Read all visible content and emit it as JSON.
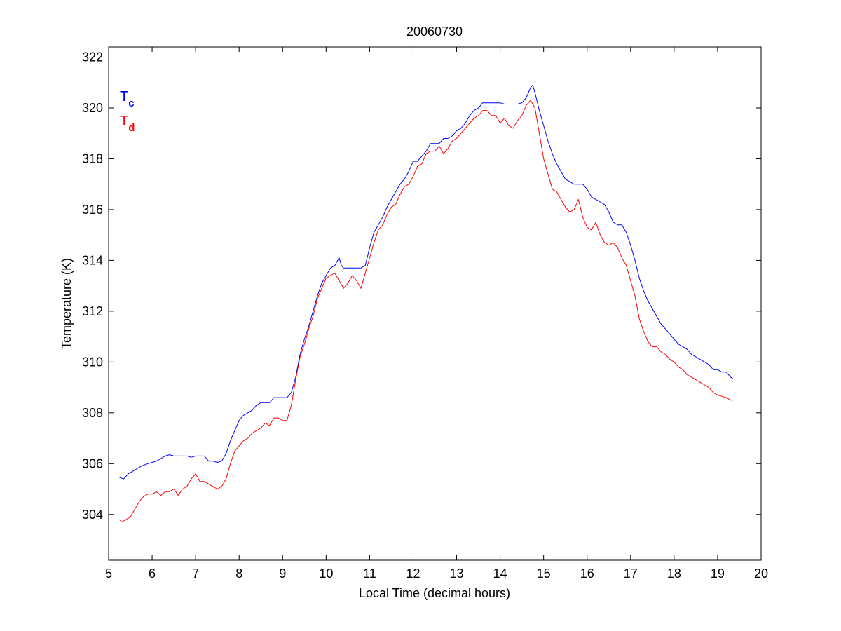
{
  "chart_data": {
    "type": "line",
    "title": "20060730",
    "xlabel": "Local Time (decimal hours)",
    "ylabel": "Temperature (K)",
    "xlim": [
      5,
      20
    ],
    "ylim": [
      302.2,
      322.4
    ],
    "xticks": [
      5,
      6,
      7,
      8,
      9,
      10,
      11,
      12,
      13,
      14,
      15,
      16,
      17,
      18,
      19,
      20
    ],
    "yticks": [
      304,
      306,
      308,
      310,
      312,
      314,
      316,
      318,
      320,
      322
    ],
    "grid": false,
    "legend_position": "top-left",
    "series": [
      {
        "name": "Tc",
        "legend_main": "T",
        "legend_sub": "c",
        "color": "#0000ff",
        "x": [
          5.25,
          5.35,
          5.45,
          5.6,
          5.75,
          5.9,
          6.0,
          6.1,
          6.2,
          6.3,
          6.4,
          6.5,
          6.6,
          6.7,
          6.8,
          6.9,
          7.0,
          7.1,
          7.2,
          7.3,
          7.4,
          7.5,
          7.6,
          7.7,
          7.8,
          7.9,
          8.0,
          8.1,
          8.2,
          8.3,
          8.4,
          8.5,
          8.6,
          8.7,
          8.8,
          8.9,
          9.0,
          9.1,
          9.2,
          9.3,
          9.4,
          9.5,
          9.6,
          9.7,
          9.8,
          9.9,
          10.0,
          10.1,
          10.2,
          10.3,
          10.35,
          10.4,
          10.5,
          10.6,
          10.7,
          10.8,
          10.9,
          11.0,
          11.1,
          11.2,
          11.3,
          11.4,
          11.5,
          11.6,
          11.7,
          11.8,
          11.9,
          12.0,
          12.1,
          12.2,
          12.3,
          12.4,
          12.5,
          12.6,
          12.7,
          12.8,
          12.9,
          13.0,
          13.1,
          13.2,
          13.3,
          13.4,
          13.5,
          13.6,
          13.7,
          13.8,
          13.9,
          14.0,
          14.1,
          14.2,
          14.3,
          14.4,
          14.5,
          14.6,
          14.7,
          14.75,
          14.8,
          14.9,
          15.0,
          15.1,
          15.2,
          15.3,
          15.4,
          15.5,
          15.6,
          15.7,
          15.8,
          15.9,
          16.0,
          16.1,
          16.2,
          16.3,
          16.4,
          16.5,
          16.6,
          16.7,
          16.8,
          16.9,
          17.0,
          17.1,
          17.2,
          17.3,
          17.4,
          17.5,
          17.6,
          17.7,
          17.8,
          17.9,
          18.0,
          18.1,
          18.2,
          18.3,
          18.4,
          18.5,
          18.6,
          18.7,
          18.8,
          18.9,
          19.0,
          19.1,
          19.2,
          19.3,
          19.35
        ],
        "values": [
          305.45,
          305.4,
          305.6,
          305.75,
          305.9,
          306.0,
          306.05,
          306.1,
          306.2,
          306.3,
          306.35,
          306.3,
          306.3,
          306.3,
          306.3,
          306.25,
          306.3,
          306.3,
          306.3,
          306.1,
          306.1,
          306.05,
          306.1,
          306.4,
          306.9,
          307.3,
          307.7,
          307.9,
          308.0,
          308.1,
          308.3,
          308.4,
          308.4,
          308.4,
          308.6,
          308.6,
          308.6,
          308.6,
          308.8,
          309.4,
          310.3,
          310.9,
          311.4,
          312.0,
          312.6,
          313.1,
          313.4,
          313.7,
          313.8,
          314.1,
          313.8,
          313.7,
          313.7,
          313.7,
          313.7,
          313.7,
          313.8,
          314.5,
          315.1,
          315.4,
          315.7,
          316.1,
          316.4,
          316.7,
          317.0,
          317.2,
          317.5,
          317.9,
          317.9,
          318.1,
          318.3,
          318.6,
          318.6,
          318.6,
          318.8,
          318.8,
          318.9,
          319.1,
          319.2,
          319.4,
          319.7,
          319.9,
          320.0,
          320.2,
          320.2,
          320.2,
          320.2,
          320.2,
          320.15,
          320.15,
          320.15,
          320.15,
          320.2,
          320.4,
          320.8,
          320.9,
          320.6,
          319.9,
          319.3,
          318.7,
          318.2,
          317.8,
          317.5,
          317.2,
          317.1,
          317.0,
          317.0,
          317.0,
          316.8,
          316.5,
          316.4,
          316.3,
          316.2,
          315.9,
          315.5,
          315.4,
          315.4,
          315.1,
          314.6,
          314.0,
          313.3,
          312.8,
          312.4,
          312.1,
          311.8,
          311.5,
          311.3,
          311.1,
          310.9,
          310.7,
          310.6,
          310.5,
          310.3,
          310.2,
          310.1,
          310.0,
          309.9,
          309.7,
          309.7,
          309.6,
          309.6,
          309.4,
          309.35
        ]
      },
      {
        "name": "Td",
        "legend_main": "T",
        "legend_sub": "d",
        "color": "#ff0000",
        "x": [
          5.25,
          5.3,
          5.4,
          5.5,
          5.6,
          5.7,
          5.8,
          5.9,
          6.0,
          6.1,
          6.2,
          6.3,
          6.4,
          6.5,
          6.6,
          6.7,
          6.8,
          6.9,
          7.0,
          7.1,
          7.2,
          7.3,
          7.4,
          7.5,
          7.6,
          7.7,
          7.8,
          7.9,
          8.0,
          8.1,
          8.2,
          8.3,
          8.4,
          8.5,
          8.6,
          8.7,
          8.8,
          8.9,
          9.0,
          9.1,
          9.2,
          9.3,
          9.4,
          9.5,
          9.6,
          9.7,
          9.8,
          9.9,
          10.0,
          10.1,
          10.2,
          10.3,
          10.4,
          10.5,
          10.6,
          10.7,
          10.8,
          10.9,
          11.0,
          11.1,
          11.2,
          11.3,
          11.4,
          11.5,
          11.6,
          11.7,
          11.8,
          11.9,
          12.0,
          12.1,
          12.2,
          12.3,
          12.4,
          12.5,
          12.6,
          12.7,
          12.8,
          12.9,
          13.0,
          13.1,
          13.2,
          13.3,
          13.4,
          13.5,
          13.6,
          13.7,
          13.8,
          13.9,
          14.0,
          14.1,
          14.2,
          14.3,
          14.4,
          14.5,
          14.6,
          14.7,
          14.8,
          14.9,
          15.0,
          15.1,
          15.2,
          15.3,
          15.4,
          15.5,
          15.6,
          15.7,
          15.8,
          15.9,
          16.0,
          16.1,
          16.2,
          16.3,
          16.4,
          16.5,
          16.6,
          16.7,
          16.8,
          16.9,
          17.0,
          17.1,
          17.2,
          17.3,
          17.4,
          17.5,
          17.6,
          17.7,
          17.8,
          17.9,
          18.0,
          18.1,
          18.2,
          18.3,
          18.4,
          18.5,
          18.6,
          18.7,
          18.8,
          18.9,
          19.0,
          19.1,
          19.2,
          19.3,
          19.35
        ],
        "values": [
          303.8,
          303.7,
          303.8,
          303.9,
          304.2,
          304.5,
          304.7,
          304.8,
          304.8,
          304.9,
          304.75,
          304.9,
          304.9,
          305.0,
          304.75,
          305.0,
          305.1,
          305.4,
          305.6,
          305.3,
          305.3,
          305.2,
          305.1,
          305.0,
          305.1,
          305.4,
          306.0,
          306.5,
          306.7,
          306.9,
          307.0,
          307.2,
          307.3,
          307.4,
          307.6,
          307.5,
          307.8,
          307.8,
          307.7,
          307.7,
          308.3,
          309.3,
          310.2,
          310.7,
          311.3,
          311.8,
          312.5,
          312.9,
          313.3,
          313.4,
          313.5,
          313.2,
          312.9,
          313.1,
          313.4,
          313.2,
          312.9,
          313.5,
          314.1,
          314.7,
          315.2,
          315.4,
          315.8,
          316.1,
          316.2,
          316.6,
          316.9,
          317.0,
          317.3,
          317.7,
          317.8,
          318.2,
          318.3,
          318.3,
          318.5,
          318.2,
          318.4,
          318.7,
          318.8,
          319.0,
          319.2,
          319.4,
          319.6,
          319.7,
          319.9,
          319.9,
          319.7,
          319.7,
          319.4,
          319.6,
          319.3,
          319.2,
          319.5,
          319.7,
          320.1,
          320.3,
          320.0,
          319.0,
          318.0,
          317.4,
          316.8,
          316.7,
          316.4,
          316.1,
          315.9,
          316.0,
          316.4,
          315.7,
          315.3,
          315.2,
          315.5,
          315.0,
          314.7,
          314.6,
          314.7,
          314.5,
          314.1,
          313.8,
          313.2,
          312.6,
          311.7,
          311.2,
          310.8,
          310.6,
          310.6,
          310.4,
          310.3,
          310.1,
          310.0,
          309.8,
          309.7,
          309.5,
          309.4,
          309.3,
          309.2,
          309.1,
          309.0,
          308.8,
          308.7,
          308.65,
          308.6,
          308.5,
          308.5
        ]
      }
    ]
  }
}
